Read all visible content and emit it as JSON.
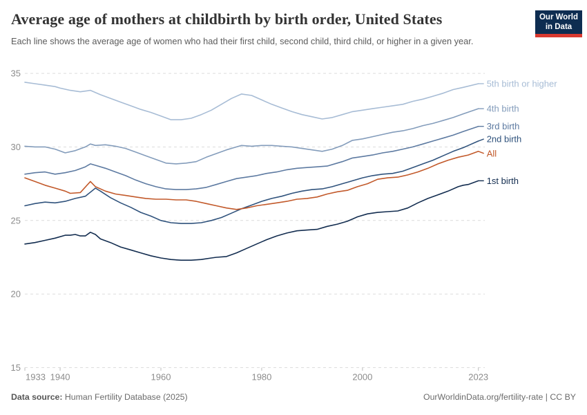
{
  "header": {
    "title": "Average age of mothers at childbirth by birth order, United States",
    "subtitle": "Each line shows the average age of women who had their first child, second child, third child, or higher in a given year."
  },
  "logo": {
    "line1": "Our World",
    "line2": "in Data",
    "bg_color": "#0e2d51",
    "accent_color": "#d9392f"
  },
  "footer": {
    "datasource_label": "Data source:",
    "datasource_value": " Human Fertility Database (2025)",
    "credit": "OurWorldinData.org/fertility-rate | CC BY"
  },
  "chart_data": {
    "type": "line",
    "title": "Average age of mothers at childbirth by birth order, United States",
    "xlabel": "",
    "ylabel": "",
    "xlim": [
      1933,
      2023
    ],
    "ylim": [
      15,
      35
    ],
    "xticks": [
      1933,
      1940,
      1960,
      1980,
      2000,
      2023
    ],
    "yticks": [
      15,
      20,
      25,
      30,
      35
    ],
    "grid": "horizontal-dashed",
    "gridline_color": "#dcdcdc",
    "tick_label_color": "#8c8c8c",
    "legend_position": "right-end-labels",
    "series": [
      {
        "name": "5th-birth-or-higher",
        "label": "5th birth or higher",
        "color": "#a7bcd5",
        "label_dy": 0,
        "points": [
          [
            1933,
            34.4
          ],
          [
            1935,
            34.3
          ],
          [
            1937,
            34.2
          ],
          [
            1939,
            34.1
          ],
          [
            1940,
            34.0
          ],
          [
            1942,
            33.85
          ],
          [
            1944,
            33.75
          ],
          [
            1946,
            33.85
          ],
          [
            1948,
            33.55
          ],
          [
            1950,
            33.3
          ],
          [
            1952,
            33.05
          ],
          [
            1954,
            32.8
          ],
          [
            1956,
            32.55
          ],
          [
            1958,
            32.35
          ],
          [
            1960,
            32.1
          ],
          [
            1962,
            31.85
          ],
          [
            1964,
            31.85
          ],
          [
            1966,
            31.95
          ],
          [
            1968,
            32.2
          ],
          [
            1970,
            32.5
          ],
          [
            1972,
            32.9
          ],
          [
            1974,
            33.3
          ],
          [
            1976,
            33.6
          ],
          [
            1978,
            33.5
          ],
          [
            1980,
            33.2
          ],
          [
            1982,
            32.9
          ],
          [
            1984,
            32.65
          ],
          [
            1986,
            32.4
          ],
          [
            1988,
            32.2
          ],
          [
            1990,
            32.05
          ],
          [
            1992,
            31.9
          ],
          [
            1994,
            32.0
          ],
          [
            1996,
            32.2
          ],
          [
            1998,
            32.4
          ],
          [
            2000,
            32.5
          ],
          [
            2002,
            32.6
          ],
          [
            2004,
            32.7
          ],
          [
            2006,
            32.8
          ],
          [
            2008,
            32.9
          ],
          [
            2010,
            33.1
          ],
          [
            2012,
            33.25
          ],
          [
            2014,
            33.45
          ],
          [
            2016,
            33.65
          ],
          [
            2018,
            33.9
          ],
          [
            2020,
            34.05
          ],
          [
            2023,
            34.3
          ]
        ]
      },
      {
        "name": "4th-birth",
        "label": "4th birth",
        "color": "#839cbb",
        "label_dy": 0,
        "points": [
          [
            1933,
            30.05
          ],
          [
            1935,
            30.0
          ],
          [
            1937,
            30.0
          ],
          [
            1939,
            29.85
          ],
          [
            1941,
            29.6
          ],
          [
            1943,
            29.75
          ],
          [
            1945,
            30.0
          ],
          [
            1946,
            30.2
          ],
          [
            1947,
            30.1
          ],
          [
            1949,
            30.15
          ],
          [
            1951,
            30.05
          ],
          [
            1953,
            29.9
          ],
          [
            1955,
            29.65
          ],
          [
            1957,
            29.4
          ],
          [
            1959,
            29.15
          ],
          [
            1961,
            28.9
          ],
          [
            1963,
            28.85
          ],
          [
            1965,
            28.9
          ],
          [
            1967,
            29.0
          ],
          [
            1969,
            29.3
          ],
          [
            1971,
            29.55
          ],
          [
            1973,
            29.8
          ],
          [
            1975,
            30.0
          ],
          [
            1976,
            30.1
          ],
          [
            1978,
            30.05
          ],
          [
            1980,
            30.1
          ],
          [
            1982,
            30.1
          ],
          [
            1984,
            30.05
          ],
          [
            1986,
            30.0
          ],
          [
            1988,
            29.9
          ],
          [
            1990,
            29.8
          ],
          [
            1992,
            29.7
          ],
          [
            1994,
            29.85
          ],
          [
            1996,
            30.1
          ],
          [
            1998,
            30.45
          ],
          [
            2000,
            30.55
          ],
          [
            2002,
            30.7
          ],
          [
            2004,
            30.85
          ],
          [
            2006,
            31.0
          ],
          [
            2008,
            31.1
          ],
          [
            2010,
            31.25
          ],
          [
            2012,
            31.45
          ],
          [
            2014,
            31.6
          ],
          [
            2016,
            31.8
          ],
          [
            2018,
            32.0
          ],
          [
            2020,
            32.25
          ],
          [
            2023,
            32.6
          ]
        ]
      },
      {
        "name": "3rd-birth",
        "label": "3rd birth",
        "color": "#5d7aa1",
        "label_dy": 0,
        "points": [
          [
            1933,
            28.15
          ],
          [
            1935,
            28.25
          ],
          [
            1937,
            28.3
          ],
          [
            1939,
            28.15
          ],
          [
            1941,
            28.25
          ],
          [
            1943,
            28.4
          ],
          [
            1945,
            28.65
          ],
          [
            1946,
            28.85
          ],
          [
            1947,
            28.75
          ],
          [
            1949,
            28.55
          ],
          [
            1951,
            28.3
          ],
          [
            1953,
            28.05
          ],
          [
            1955,
            27.75
          ],
          [
            1957,
            27.5
          ],
          [
            1959,
            27.3
          ],
          [
            1961,
            27.15
          ],
          [
            1963,
            27.1
          ],
          [
            1965,
            27.1
          ],
          [
            1967,
            27.15
          ],
          [
            1969,
            27.25
          ],
          [
            1971,
            27.45
          ],
          [
            1973,
            27.65
          ],
          [
            1975,
            27.85
          ],
          [
            1977,
            27.95
          ],
          [
            1979,
            28.05
          ],
          [
            1981,
            28.2
          ],
          [
            1983,
            28.3
          ],
          [
            1985,
            28.45
          ],
          [
            1987,
            28.55
          ],
          [
            1989,
            28.6
          ],
          [
            1991,
            28.65
          ],
          [
            1993,
            28.7
          ],
          [
            1995,
            28.9
          ],
          [
            1996,
            29.0
          ],
          [
            1998,
            29.25
          ],
          [
            2000,
            29.35
          ],
          [
            2002,
            29.45
          ],
          [
            2004,
            29.6
          ],
          [
            2006,
            29.7
          ],
          [
            2008,
            29.85
          ],
          [
            2010,
            30.0
          ],
          [
            2012,
            30.2
          ],
          [
            2014,
            30.4
          ],
          [
            2016,
            30.6
          ],
          [
            2018,
            30.8
          ],
          [
            2020,
            31.05
          ],
          [
            2023,
            31.4
          ]
        ]
      },
      {
        "name": "2nd-birth",
        "label": "2nd birth",
        "color": "#2f527c",
        "label_dy": -3,
        "points": [
          [
            1933,
            26.0
          ],
          [
            1935,
            26.15
          ],
          [
            1937,
            26.25
          ],
          [
            1939,
            26.2
          ],
          [
            1941,
            26.3
          ],
          [
            1943,
            26.5
          ],
          [
            1945,
            26.65
          ],
          [
            1947,
            27.2
          ],
          [
            1948,
            27.0
          ],
          [
            1950,
            26.55
          ],
          [
            1952,
            26.2
          ],
          [
            1954,
            25.9
          ],
          [
            1956,
            25.55
          ],
          [
            1958,
            25.3
          ],
          [
            1960,
            25.0
          ],
          [
            1962,
            24.85
          ],
          [
            1964,
            24.8
          ],
          [
            1966,
            24.8
          ],
          [
            1968,
            24.85
          ],
          [
            1970,
            25.0
          ],
          [
            1972,
            25.2
          ],
          [
            1974,
            25.5
          ],
          [
            1976,
            25.8
          ],
          [
            1978,
            26.05
          ],
          [
            1980,
            26.3
          ],
          [
            1982,
            26.5
          ],
          [
            1984,
            26.65
          ],
          [
            1986,
            26.85
          ],
          [
            1988,
            27.0
          ],
          [
            1990,
            27.1
          ],
          [
            1992,
            27.15
          ],
          [
            1994,
            27.3
          ],
          [
            1996,
            27.5
          ],
          [
            1998,
            27.7
          ],
          [
            2000,
            27.9
          ],
          [
            2002,
            28.05
          ],
          [
            2004,
            28.15
          ],
          [
            2006,
            28.2
          ],
          [
            2008,
            28.35
          ],
          [
            2010,
            28.6
          ],
          [
            2012,
            28.85
          ],
          [
            2014,
            29.1
          ],
          [
            2016,
            29.4
          ],
          [
            2018,
            29.7
          ],
          [
            2020,
            29.95
          ],
          [
            2021,
            30.1
          ],
          [
            2023,
            30.4
          ]
        ]
      },
      {
        "name": "all",
        "label": "All",
        "color": "#c2592a",
        "label_dy": 3,
        "points": [
          [
            1933,
            27.9
          ],
          [
            1935,
            27.65
          ],
          [
            1937,
            27.4
          ],
          [
            1939,
            27.2
          ],
          [
            1941,
            27.0
          ],
          [
            1942,
            26.85
          ],
          [
            1944,
            26.9
          ],
          [
            1946,
            27.65
          ],
          [
            1947,
            27.3
          ],
          [
            1949,
            27.0
          ],
          [
            1951,
            26.8
          ],
          [
            1953,
            26.7
          ],
          [
            1955,
            26.6
          ],
          [
            1957,
            26.5
          ],
          [
            1959,
            26.45
          ],
          [
            1961,
            26.45
          ],
          [
            1963,
            26.4
          ],
          [
            1965,
            26.4
          ],
          [
            1967,
            26.3
          ],
          [
            1969,
            26.15
          ],
          [
            1971,
            26.0
          ],
          [
            1973,
            25.85
          ],
          [
            1975,
            25.75
          ],
          [
            1977,
            25.85
          ],
          [
            1979,
            26.0
          ],
          [
            1981,
            26.1
          ],
          [
            1983,
            26.2
          ],
          [
            1985,
            26.3
          ],
          [
            1987,
            26.45
          ],
          [
            1989,
            26.5
          ],
          [
            1991,
            26.6
          ],
          [
            1993,
            26.8
          ],
          [
            1995,
            26.95
          ],
          [
            1997,
            27.05
          ],
          [
            1999,
            27.3
          ],
          [
            2001,
            27.5
          ],
          [
            2003,
            27.8
          ],
          [
            2005,
            27.9
          ],
          [
            2007,
            27.95
          ],
          [
            2009,
            28.1
          ],
          [
            2011,
            28.3
          ],
          [
            2013,
            28.55
          ],
          [
            2015,
            28.85
          ],
          [
            2017,
            29.1
          ],
          [
            2019,
            29.3
          ],
          [
            2021,
            29.45
          ],
          [
            2023,
            29.7
          ]
        ]
      },
      {
        "name": "1st-birth",
        "label": "1st birth",
        "color": "#122c4f",
        "label_dy": 0,
        "points": [
          [
            1933,
            23.4
          ],
          [
            1935,
            23.5
          ],
          [
            1937,
            23.65
          ],
          [
            1939,
            23.8
          ],
          [
            1941,
            24.0
          ],
          [
            1942,
            24.0
          ],
          [
            1943,
            24.05
          ],
          [
            1944,
            23.95
          ],
          [
            1945,
            23.95
          ],
          [
            1946,
            24.2
          ],
          [
            1947,
            24.05
          ],
          [
            1948,
            23.75
          ],
          [
            1950,
            23.5
          ],
          [
            1952,
            23.2
          ],
          [
            1954,
            23.0
          ],
          [
            1956,
            22.8
          ],
          [
            1958,
            22.6
          ],
          [
            1960,
            22.45
          ],
          [
            1962,
            22.35
          ],
          [
            1964,
            22.3
          ],
          [
            1966,
            22.3
          ],
          [
            1968,
            22.35
          ],
          [
            1970,
            22.45
          ],
          [
            1971,
            22.5
          ],
          [
            1973,
            22.55
          ],
          [
            1975,
            22.8
          ],
          [
            1977,
            23.1
          ],
          [
            1979,
            23.4
          ],
          [
            1981,
            23.7
          ],
          [
            1983,
            23.95
          ],
          [
            1985,
            24.15
          ],
          [
            1987,
            24.3
          ],
          [
            1989,
            24.35
          ],
          [
            1991,
            24.4
          ],
          [
            1993,
            24.6
          ],
          [
            1995,
            24.75
          ],
          [
            1997,
            24.95
          ],
          [
            1999,
            25.25
          ],
          [
            2001,
            25.45
          ],
          [
            2003,
            25.55
          ],
          [
            2005,
            25.6
          ],
          [
            2007,
            25.65
          ],
          [
            2009,
            25.85
          ],
          [
            2011,
            26.2
          ],
          [
            2013,
            26.5
          ],
          [
            2015,
            26.75
          ],
          [
            2017,
            27.0
          ],
          [
            2019,
            27.3
          ],
          [
            2020,
            27.4
          ],
          [
            2021,
            27.45
          ],
          [
            2023,
            27.7
          ]
        ]
      }
    ]
  }
}
